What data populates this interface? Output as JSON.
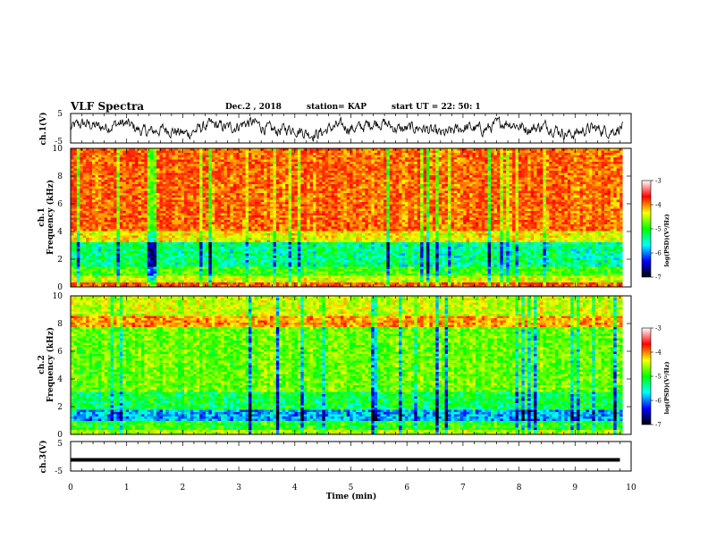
{
  "header": {
    "title": "VLF Spectra",
    "date": "Dec.2 , 2018",
    "station": "station= KAP",
    "start": "start  UT =   22: 50: 1"
  },
  "colorbar": {
    "label": "log(PSD)(V²/Hz)",
    "ticks": [
      "-3",
      "-4",
      "-5",
      "-6",
      "-7"
    ],
    "colors": [
      "#ffffff",
      "#ff0000",
      "#ffff00",
      "#00ff00",
      "#00ffff",
      "#0000ff",
      "#000000"
    ]
  },
  "chart_data": [
    {
      "type": "line",
      "title": "VLF Spectra",
      "ylabel": "ch.1(V)",
      "xlabel": "",
      "xlim": [
        0,
        10
      ],
      "ylim": [
        -5,
        5
      ],
      "yticks": [
        "5",
        "-5"
      ],
      "series": [
        {
          "values_description_samples": [
            -1.2,
            0.8,
            -2.1,
            1.5,
            -0.6,
            2.4,
            -1.8,
            0.3,
            1.9,
            -2.6,
            0.7,
            -1.1,
            2.2,
            -0.4,
            1.3,
            -2.0,
            0.9,
            -1.5,
            2.8,
            -0.9
          ]
        }
      ]
    },
    {
      "type": "heatmap",
      "ylabel": "ch.1\nFrequency (kHz)",
      "xlim": [
        0,
        10
      ],
      "ylim": [
        0,
        10
      ],
      "yticks": [
        "0",
        "2",
        "4",
        "6",
        "8",
        "10"
      ],
      "colorbar_range": [
        -7,
        -3
      ],
      "bands": [
        {
          "from": 0,
          "to": 0.3,
          "level": -3.3
        },
        {
          "from": 0.3,
          "to": 0.8,
          "level": -4.2
        },
        {
          "from": 0.8,
          "to": 1.4,
          "level": -4.8
        },
        {
          "from": 1.4,
          "to": 3.2,
          "level": -5.3
        },
        {
          "from": 3.2,
          "to": 4.0,
          "level": -4.0
        },
        {
          "from": 4.0,
          "to": 10,
          "level": -3.4
        }
      ]
    },
    {
      "type": "heatmap",
      "ylabel": "ch.2\nFrequency (kHz)",
      "xlim": [
        0,
        10
      ],
      "ylim": [
        0,
        10
      ],
      "yticks": [
        "0",
        "2",
        "4",
        "6",
        "8",
        "10"
      ],
      "colorbar_range": [
        -7,
        -3
      ],
      "bands": [
        {
          "from": 0,
          "to": 0.4,
          "level": -4.3
        },
        {
          "from": 0.4,
          "to": 0.9,
          "level": -4.9
        },
        {
          "from": 0.9,
          "to": 1.8,
          "level": -5.8
        },
        {
          "from": 1.8,
          "to": 3.0,
          "level": -5.1
        },
        {
          "from": 3.0,
          "to": 7.8,
          "level": -4.6
        },
        {
          "from": 7.8,
          "to": 8.6,
          "level": -3.6
        },
        {
          "from": 8.6,
          "to": 10,
          "level": -4.2
        }
      ]
    },
    {
      "type": "line",
      "ylabel": "ch.3(V)",
      "xlabel": "Time (min)",
      "xlim": [
        0,
        10
      ],
      "ylim": [
        -5,
        5
      ],
      "yticks": [
        "5",
        "-5"
      ],
      "xticks": [
        "0",
        "1",
        "2",
        "3",
        "4",
        "5",
        "6",
        "7",
        "8",
        "9",
        "10"
      ],
      "series": [
        {
          "constant": -1.2,
          "data_end_x": 9.8
        }
      ]
    }
  ]
}
